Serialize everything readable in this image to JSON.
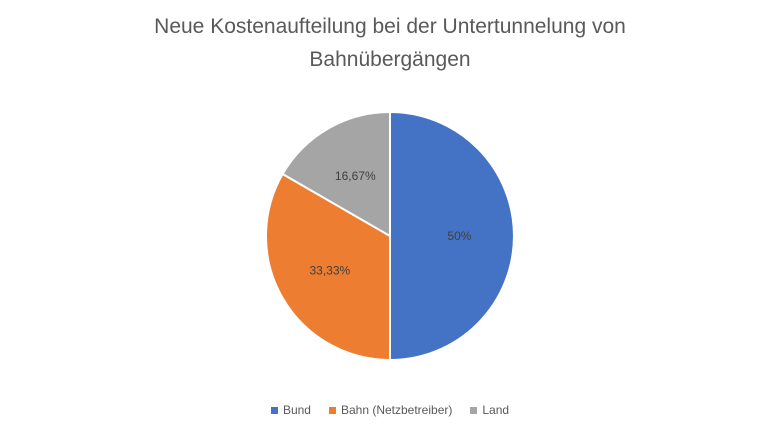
{
  "chart_data": {
    "type": "pie",
    "title_line1": "Neue Kostenaufteilung bei der Untertunnelung von",
    "title_line2": "Bahnübergängen",
    "slices": [
      {
        "name": "Bund",
        "value": 50,
        "label": "50%",
        "color": "#4472C4"
      },
      {
        "name": "Bahn (Netzbetreiber)",
        "value": 33.33,
        "label": "33,33%",
        "color": "#ED7D31"
      },
      {
        "name": "Land",
        "value": 16.67,
        "label": "16,67%",
        "color": "#A5A5A5"
      }
    ],
    "legend_position": "bottom"
  }
}
